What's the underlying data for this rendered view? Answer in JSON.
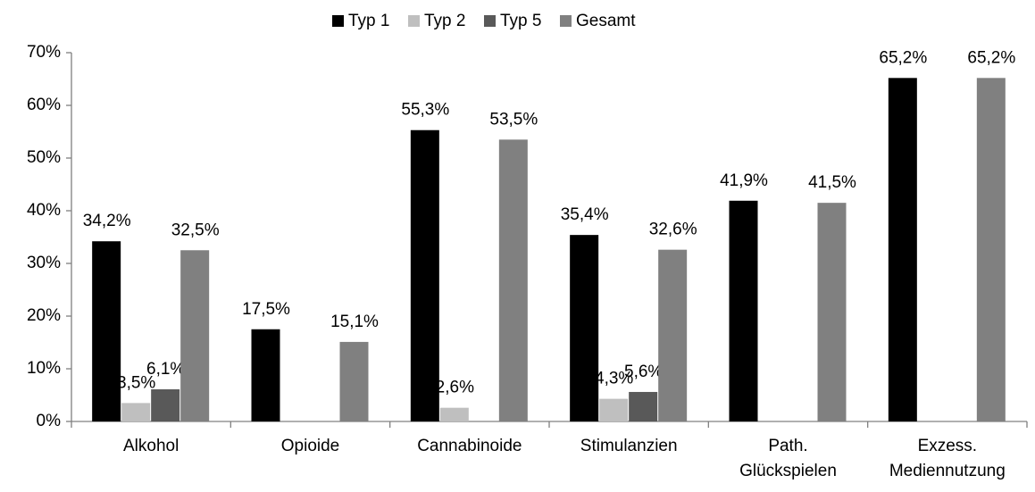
{
  "chart_data": {
    "type": "bar",
    "categories": [
      "Alkohol",
      "Opioide",
      "Cannabinoide",
      "Stimulanzien",
      "Path. Glückspielen",
      "Exzess. Mediennutzung"
    ],
    "series": [
      {
        "name": "Typ 1",
        "color": "#000000",
        "values": [
          34.2,
          17.5,
          55.3,
          35.4,
          41.9,
          65.2
        ],
        "value_labels": [
          "34,2%",
          "17,5%",
          "55,3%",
          "35,4%",
          "41,9%",
          "65,2%"
        ]
      },
      {
        "name": "Typ 2",
        "color": "#bfbfbf",
        "values": [
          3.5,
          null,
          2.6,
          4.3,
          null,
          null
        ],
        "value_labels": [
          "3,5%",
          null,
          "2,6%",
          "4,3%",
          null,
          null
        ]
      },
      {
        "name": "Typ 5",
        "color": "#595959",
        "values": [
          6.1,
          null,
          null,
          5.6,
          null,
          null
        ],
        "value_labels": [
          "6,1%",
          null,
          null,
          "5,6%",
          null,
          null
        ]
      },
      {
        "name": "Gesamt",
        "color": "#808080",
        "values": [
          32.5,
          15.1,
          53.5,
          32.6,
          41.5,
          65.2
        ],
        "value_labels": [
          "32,5%",
          "15,1%",
          "53,5%",
          "32,6%",
          "41,5%",
          "65,2%"
        ]
      }
    ],
    "ylim": [
      0,
      70
    ],
    "yticks": [
      {
        "value": 0,
        "label": "0%"
      },
      {
        "value": 10,
        "label": "10%"
      },
      {
        "value": 20,
        "label": "20%"
      },
      {
        "value": 30,
        "label": "30%"
      },
      {
        "value": 40,
        "label": "40%"
      },
      {
        "value": 50,
        "label": "50%"
      },
      {
        "value": 60,
        "label": "60%"
      },
      {
        "value": 70,
        "label": "70%"
      }
    ],
    "legend": "top"
  }
}
